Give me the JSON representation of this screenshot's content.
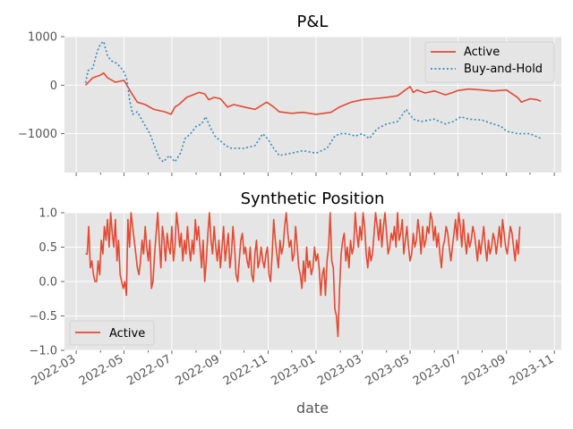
{
  "chart_data": [
    {
      "type": "line",
      "title": "P&L",
      "xlabel": "",
      "ylabel": "",
      "ylim": [
        -1800,
        1000
      ],
      "yticks": [
        -1000,
        0,
        1000
      ],
      "yticklabels": [
        "−1000",
        "0",
        "1000"
      ],
      "grid": true,
      "legend": "top-right",
      "series": [
        {
          "name": "Active",
          "color": "#e24a33",
          "style": "solid",
          "points": [
            [
              "2022-03-13",
              0
            ],
            [
              "2022-03-22",
              150
            ],
            [
              "2022-03-31",
              200
            ],
            [
              "2022-04-05",
              250
            ],
            [
              "2022-04-10",
              150
            ],
            [
              "2022-04-20",
              60
            ],
            [
              "2022-05-01",
              100
            ],
            [
              "2022-05-10",
              -150
            ],
            [
              "2022-05-18",
              -350
            ],
            [
              "2022-05-28",
              -400
            ],
            [
              "2022-06-08",
              -500
            ],
            [
              "2022-06-22",
              -550
            ],
            [
              "2022-06-30",
              -600
            ],
            [
              "2022-07-05",
              -450
            ],
            [
              "2022-07-10",
              -400
            ],
            [
              "2022-07-20",
              -250
            ],
            [
              "2022-07-28",
              -200
            ],
            [
              "2022-08-05",
              -150
            ],
            [
              "2022-08-12",
              -180
            ],
            [
              "2022-08-17",
              -300
            ],
            [
              "2022-08-24",
              -250
            ],
            [
              "2022-09-01",
              -280
            ],
            [
              "2022-09-10",
              -450
            ],
            [
              "2022-09-18",
              -400
            ],
            [
              "2022-10-01",
              -450
            ],
            [
              "2022-10-15",
              -500
            ],
            [
              "2022-10-25",
              -400
            ],
            [
              "2022-10-30",
              -350
            ],
            [
              "2022-11-08",
              -450
            ],
            [
              "2022-11-15",
              -550
            ],
            [
              "2022-12-01",
              -580
            ],
            [
              "2022-12-15",
              -560
            ],
            [
              "2023-01-01",
              -600
            ],
            [
              "2023-01-20",
              -560
            ],
            [
              "2023-01-31",
              -450
            ],
            [
              "2023-02-15",
              -350
            ],
            [
              "2023-03-01",
              -300
            ],
            [
              "2023-03-15",
              -280
            ],
            [
              "2023-04-01",
              -250
            ],
            [
              "2023-04-15",
              -220
            ],
            [
              "2023-04-25",
              -100
            ],
            [
              "2023-05-01",
              -30
            ],
            [
              "2023-05-05",
              -150
            ],
            [
              "2023-05-10",
              -100
            ],
            [
              "2023-05-20",
              -160
            ],
            [
              "2023-06-01",
              -120
            ],
            [
              "2023-06-15",
              -200
            ],
            [
              "2023-06-25",
              -150
            ],
            [
              "2023-07-01",
              -110
            ],
            [
              "2023-07-15",
              -80
            ],
            [
              "2023-08-01",
              -100
            ],
            [
              "2023-08-15",
              -120
            ],
            [
              "2023-09-01",
              -100
            ],
            [
              "2023-09-15",
              -250
            ],
            [
              "2023-09-20",
              -350
            ],
            [
              "2023-10-01",
              -280
            ],
            [
              "2023-10-10",
              -300
            ],
            [
              "2023-10-15",
              -330
            ]
          ]
        },
        {
          "name": "Buy-and-Hold",
          "color": "#348abd",
          "style": "dotted",
          "points": [
            [
              "2022-03-13",
              50
            ],
            [
              "2022-03-16",
              300
            ],
            [
              "2022-03-22",
              350
            ],
            [
              "2022-03-28",
              700
            ],
            [
              "2022-04-01",
              850
            ],
            [
              "2022-04-05",
              900
            ],
            [
              "2022-04-10",
              600
            ],
            [
              "2022-04-15",
              500
            ],
            [
              "2022-04-22",
              450
            ],
            [
              "2022-04-30",
              300
            ],
            [
              "2022-05-05",
              100
            ],
            [
              "2022-05-08",
              -300
            ],
            [
              "2022-05-12",
              -600
            ],
            [
              "2022-05-18",
              -550
            ],
            [
              "2022-05-25",
              -750
            ],
            [
              "2022-06-03",
              -1000
            ],
            [
              "2022-06-10",
              -1300
            ],
            [
              "2022-06-15",
              -1500
            ],
            [
              "2022-06-20",
              -1580
            ],
            [
              "2022-06-28",
              -1450
            ],
            [
              "2022-07-05",
              -1580
            ],
            [
              "2022-07-12",
              -1400
            ],
            [
              "2022-07-18",
              -1100
            ],
            [
              "2022-07-25",
              -1000
            ],
            [
              "2022-08-01",
              -850
            ],
            [
              "2022-08-08",
              -800
            ],
            [
              "2022-08-13",
              -650
            ],
            [
              "2022-08-20",
              -900
            ],
            [
              "2022-08-25",
              -1050
            ],
            [
              "2022-09-01",
              -1150
            ],
            [
              "2022-09-08",
              -1250
            ],
            [
              "2022-09-15",
              -1300
            ],
            [
              "2022-10-01",
              -1300
            ],
            [
              "2022-10-15",
              -1250
            ],
            [
              "2022-10-25",
              -1000
            ],
            [
              "2022-10-31",
              -1100
            ],
            [
              "2022-11-08",
              -1300
            ],
            [
              "2022-11-15",
              -1450
            ],
            [
              "2022-12-01",
              -1400
            ],
            [
              "2022-12-15",
              -1350
            ],
            [
              "2023-01-01",
              -1400
            ],
            [
              "2023-01-15",
              -1300
            ],
            [
              "2023-01-25",
              -1050
            ],
            [
              "2023-02-01",
              -1000
            ],
            [
              "2023-02-10",
              -1000
            ],
            [
              "2023-02-20",
              -1050
            ],
            [
              "2023-03-01",
              -1000
            ],
            [
              "2023-03-10",
              -1100
            ],
            [
              "2023-03-20",
              -900
            ],
            [
              "2023-04-01",
              -800
            ],
            [
              "2023-04-15",
              -750
            ],
            [
              "2023-04-26",
              -500
            ],
            [
              "2023-05-05",
              -700
            ],
            [
              "2023-05-15",
              -750
            ],
            [
              "2023-06-01",
              -700
            ],
            [
              "2023-06-15",
              -800
            ],
            [
              "2023-06-25",
              -750
            ],
            [
              "2023-07-05",
              -650
            ],
            [
              "2023-07-15",
              -700
            ],
            [
              "2023-08-01",
              -720
            ],
            [
              "2023-08-15",
              -800
            ],
            [
              "2023-08-25",
              -850
            ],
            [
              "2023-09-01",
              -950
            ],
            [
              "2023-09-15",
              -1000
            ],
            [
              "2023-10-01",
              -1000
            ],
            [
              "2023-10-08",
              -1050
            ],
            [
              "2023-10-15",
              -1100
            ]
          ]
        }
      ]
    },
    {
      "type": "line",
      "title": "Synthetic Position",
      "xlabel": "date",
      "ylabel": "",
      "ylim": [
        -1.0,
        1.0
      ],
      "yticks": [
        -1.0,
        -0.5,
        0.0,
        0.5,
        1.0
      ],
      "yticklabels": [
        "−1.0",
        "−0.5",
        "0.0",
        "0.5",
        "1.0"
      ],
      "xticklabels": [
        "2022-03",
        "2022-05",
        "2022-07",
        "2022-09",
        "2022-11",
        "2023-01",
        "2023-03",
        "2023-05",
        "2023-07",
        "2023-09",
        "2023-11"
      ],
      "grid": true,
      "legend": "bottom-left",
      "series": [
        {
          "name": "Active",
          "color": "#e24a33",
          "style": "solid",
          "start": "2022-03-13",
          "step_days": 2,
          "values": [
            0.4,
            0.4,
            0.8,
            0.2,
            0.3,
            0.1,
            0.0,
            0.0,
            0.3,
            0.1,
            0.6,
            0.4,
            0.8,
            0.6,
            0.9,
            0.5,
            1.0,
            0.7,
            0.5,
            0.9,
            0.3,
            0.6,
            0.1,
            0.0,
            -0.1,
            0.0,
            -0.2,
            0.9,
            0.5,
            1.0,
            0.8,
            0.6,
            0.4,
            0.2,
            0.1,
            0.3,
            0.6,
            0.4,
            0.8,
            0.5,
            0.3,
            0.6,
            -0.1,
            0.0,
            0.4,
            0.7,
            1.0,
            0.6,
            0.2,
            0.8,
            0.6,
            0.3,
            0.7,
            0.5,
            0.4,
            0.8,
            0.3,
            0.5,
            1.0,
            0.8,
            0.5,
            0.7,
            0.3,
            0.6,
            0.4,
            0.8,
            0.5,
            0.3,
            0.6,
            0.4,
            0.9,
            0.6,
            0.8,
            0.5,
            0.2,
            0.6,
            0.0,
            0.3,
            0.7,
            1.0,
            0.6,
            0.4,
            0.8,
            0.5,
            0.3,
            0.6,
            0.2,
            0.5,
            0.8,
            0.3,
            0.5,
            0.7,
            0.2,
            0.4,
            0.8,
            0.5,
            0.1,
            0.0,
            0.3,
            0.6,
            0.7,
            0.4,
            0.5,
            0.3,
            0.2,
            0.5,
            0.1,
            0.0,
            0.4,
            0.6,
            0.2,
            0.3,
            0.5,
            0.3,
            0.2,
            0.4,
            0.5,
            0.1,
            0.0,
            0.4,
            0.9,
            0.6,
            0.4,
            0.2,
            0.6,
            0.4,
            0.5,
            0.8,
            1.0,
            0.7,
            0.5,
            0.6,
            0.3,
            0.4,
            0.8,
            0.5,
            0.2,
            0.1,
            -0.1,
            0.3,
            0.0,
            0.5,
            0.2,
            0.3,
            0.1,
            0.2,
            0.5,
            0.3,
            0.4,
            0.2,
            -0.2,
            0.1,
            0.2,
            -0.2,
            0.3,
            0.5,
            1.0,
            0.3,
            0.2,
            -0.4,
            -0.5,
            -0.8,
            -0.1,
            0.4,
            0.6,
            0.7,
            0.3,
            0.5,
            0.2,
            0.6,
            0.4,
            0.5,
            1.0,
            0.7,
            0.5,
            0.8,
            0.6,
            1.0,
            0.8,
            0.4,
            0.2,
            0.5,
            0.3,
            0.4,
            0.7,
            1.0,
            0.8,
            0.6,
            0.9,
            0.5,
            0.8,
            1.0,
            0.7,
            0.4,
            0.5,
            0.7,
            0.6,
            0.8,
            0.5,
            1.0,
            0.6,
            0.7,
            0.9,
            0.4,
            0.6,
            0.8,
            0.5,
            0.3,
            0.4,
            0.7,
            0.5,
            0.6,
            0.9,
            0.7,
            0.4,
            0.8,
            0.5,
            0.6,
            0.8,
            0.7,
            1.0,
            0.9,
            0.6,
            0.8,
            0.5,
            0.7,
            0.4,
            0.2,
            0.5,
            0.6,
            0.8,
            0.7,
            0.5,
            0.3,
            0.5,
            0.7,
            0.9,
            0.6,
            1.0,
            0.8,
            0.5,
            0.9,
            0.6,
            0.4,
            0.7,
            0.5,
            0.6,
            0.8,
            0.7,
            0.5,
            0.3,
            0.6,
            0.4,
            0.6,
            0.8,
            0.5,
            0.3,
            0.6,
            0.4,
            0.5,
            0.7,
            0.6,
            0.4,
            0.6,
            0.8,
            0.5,
            0.9,
            0.7,
            0.5,
            0.4,
            0.6,
            0.8,
            0.7,
            0.5,
            0.3,
            0.6,
            0.4,
            0.8
          ]
        }
      ]
    }
  ]
}
